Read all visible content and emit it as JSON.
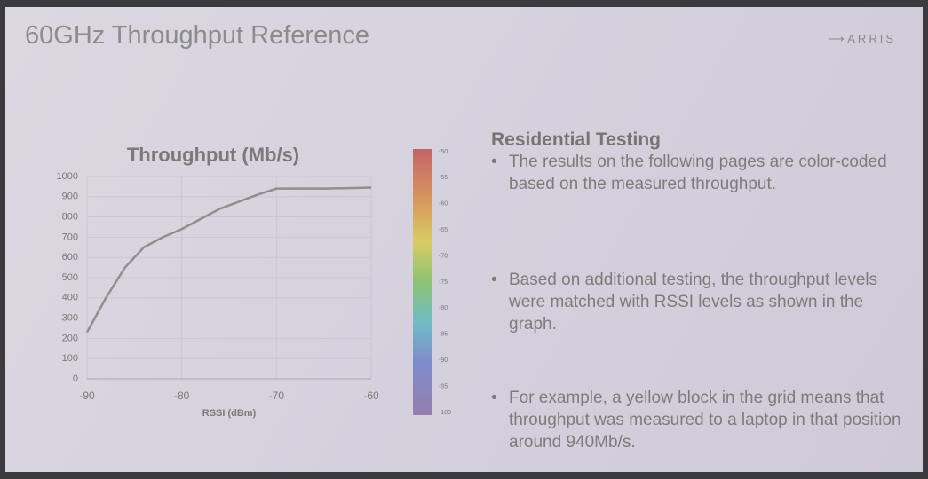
{
  "slide_title": "60GHz Throughput Reference",
  "logo": "ARRIS",
  "chart_data": {
    "type": "line",
    "title": "Throughput (Mb/s)",
    "x_label": "RSSI (dBm)",
    "x": [
      -90,
      -88,
      -86,
      -84,
      -82,
      -80,
      -78,
      -76,
      -74,
      -72,
      -70,
      -68,
      -65,
      -60
    ],
    "values": [
      230,
      400,
      550,
      650,
      700,
      740,
      790,
      840,
      875,
      910,
      940,
      940,
      940,
      945
    ],
    "color": "#8f8f8f",
    "xlim": [
      -90,
      -60
    ],
    "xticks": [
      -90,
      -80,
      -70,
      -60
    ],
    "ylim": [
      0,
      1000
    ],
    "yticks": [
      0,
      100,
      200,
      300,
      400,
      500,
      600,
      700,
      800,
      900,
      1000
    ],
    "grid": true
  },
  "colorbar": {
    "ticks": [
      -50,
      -55,
      -60,
      -65,
      -70,
      -75,
      -80,
      -85,
      -90,
      -95,
      -100
    ]
  },
  "section": {
    "heading": "Residential Testing",
    "bullets": [
      "The results on the following pages are color-coded based on the measured throughput.",
      "Based on additional testing, the throughput levels were matched with RSSI levels as shown in the graph.",
      "For example, a yellow block in the grid means that throughput was measured to a laptop in that position around 940Mb/s."
    ]
  }
}
